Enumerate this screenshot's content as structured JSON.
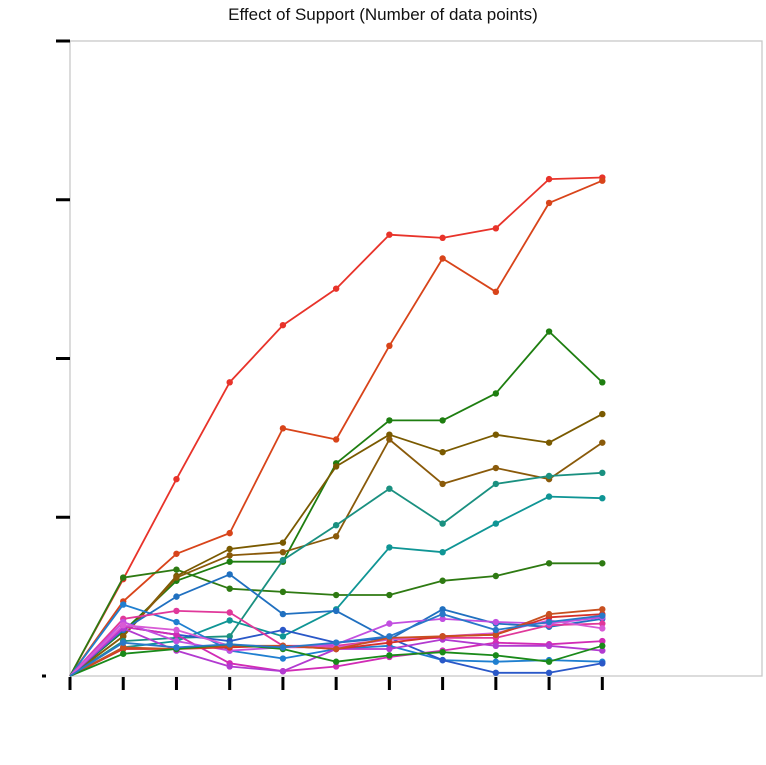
{
  "chart_data": {
    "type": "line",
    "title": "Effect of Support (Number of data points)",
    "xlabel": "",
    "ylabel": "",
    "grid": false,
    "legend": "none",
    "x": [
      0,
      1,
      2,
      3,
      4,
      5,
      6,
      7,
      8,
      9,
      10
    ],
    "xlim": [
      0,
      13
    ],
    "ylim": [
      0,
      4
    ],
    "series": [
      {
        "color": "#e8332a",
        "values": [
          0,
          0.61,
          1.24,
          1.85,
          2.21,
          2.44,
          2.78,
          2.76,
          2.82,
          3.13,
          3.14
        ]
      },
      {
        "color": "#d8441a",
        "values": [
          0,
          0.47,
          0.77,
          0.9,
          1.56,
          1.49,
          2.08,
          2.63,
          2.42,
          2.98,
          3.12
        ]
      },
      {
        "color": "#2e7a12",
        "values": [
          0,
          0.62,
          0.67,
          0.55,
          0.53,
          0.51,
          0.51,
          0.6,
          0.63,
          0.71,
          0.71
        ]
      },
      {
        "color": "#1e7e10",
        "values": [
          0,
          0.28,
          0.6,
          0.72,
          0.72,
          1.34,
          1.61,
          1.61,
          1.78,
          2.17,
          1.85
        ]
      },
      {
        "color": "#7a5a00",
        "values": [
          0,
          0.25,
          0.63,
          0.8,
          0.84,
          1.32,
          1.52,
          1.41,
          1.52,
          1.47,
          1.65
        ]
      },
      {
        "color": "#8a5a0a",
        "values": [
          0,
          0.25,
          0.62,
          0.76,
          0.78,
          0.88,
          1.49,
          1.21,
          1.31,
          1.24,
          1.47
        ]
      },
      {
        "color": "#1a9080",
        "values": [
          0,
          0.22,
          0.24,
          0.25,
          0.73,
          0.95,
          1.18,
          0.96,
          1.21,
          1.26,
          1.28
        ]
      },
      {
        "color": "#0f9595",
        "values": [
          0,
          0.18,
          0.22,
          0.35,
          0.25,
          0.42,
          0.81,
          0.78,
          0.96,
          1.13,
          1.12
        ]
      },
      {
        "color": "#1f7fd0",
        "values": [
          0,
          0.45,
          0.34,
          0.16,
          0.11,
          0.17,
          0.19,
          0.1,
          0.09,
          0.1,
          0.09
        ]
      },
      {
        "color": "#2070c0",
        "values": [
          0,
          0.29,
          0.5,
          0.64,
          0.39,
          0.41,
          0.23,
          0.42,
          0.33,
          0.31,
          0.36
        ]
      },
      {
        "color": "#2a58c8",
        "values": [
          0,
          0.31,
          0.26,
          0.22,
          0.29,
          0.21,
          0.24,
          0.1,
          0.02,
          0.02,
          0.08
        ]
      },
      {
        "color": "#e0389a",
        "values": [
          0,
          0.36,
          0.41,
          0.4,
          0.19,
          0.19,
          0.23,
          0.24,
          0.24,
          0.32,
          0.33
        ]
      },
      {
        "color": "#d12bb5",
        "values": [
          0,
          0.31,
          0.26,
          0.08,
          0.03,
          0.06,
          0.12,
          0.16,
          0.21,
          0.2,
          0.22
        ]
      },
      {
        "color": "#b23ad0",
        "values": [
          0,
          0.3,
          0.16,
          0.06,
          0.03,
          0.17,
          0.17,
          0.23,
          0.19,
          0.19,
          0.16
        ]
      },
      {
        "color": "#c24fe0",
        "values": [
          0,
          0.34,
          0.22,
          0.16,
          0.18,
          0.2,
          0.33,
          0.36,
          0.34,
          0.33,
          0.37
        ]
      },
      {
        "color": "#d85bd6",
        "values": [
          0,
          0.32,
          0.29,
          0.19,
          0.18,
          0.18,
          0.23,
          0.25,
          0.27,
          0.35,
          0.3
        ]
      },
      {
        "color": "#d6302a",
        "values": [
          0,
          0.17,
          0.17,
          0.18,
          0.19,
          0.17,
          0.21,
          0.25,
          0.26,
          0.37,
          0.39
        ]
      },
      {
        "color": "#c85020",
        "values": [
          0,
          0.18,
          0.17,
          0.19,
          0.19,
          0.17,
          0.24,
          0.25,
          0.26,
          0.39,
          0.42
        ]
      },
      {
        "color": "#1a8a1a",
        "values": [
          0,
          0.14,
          0.17,
          0.2,
          0.17,
          0.09,
          0.13,
          0.15,
          0.13,
          0.09,
          0.19
        ]
      },
      {
        "color": "#2878c8",
        "values": [
          0,
          0.21,
          0.18,
          0.2,
          0.18,
          0.21,
          0.25,
          0.39,
          0.29,
          0.34,
          0.38
        ]
      }
    ]
  }
}
